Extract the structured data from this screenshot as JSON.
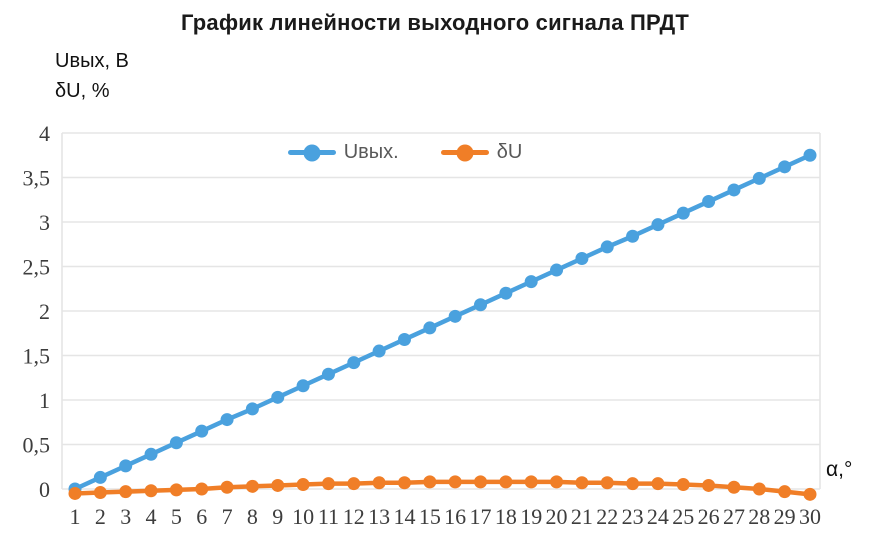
{
  "title_block": {
    "title": "График линейности выходного сигнала ПРДТ"
  },
  "colors": {
    "series_blue": "#4AA1DE",
    "series_orange": "#F07E27",
    "gridline": "#E5E5E5",
    "tick_text": "#3d3d3d",
    "legend_text": "#595959",
    "title_text": "#1a1a1a"
  },
  "chart_data": {
    "type": "line",
    "title": "График линейности выходного сигнала ПРДТ",
    "xlabel": "α,°",
    "ylabel_lines": [
      "Uвых, В",
      "δU, %"
    ],
    "x": [
      1,
      2,
      3,
      4,
      5,
      6,
      7,
      8,
      9,
      10,
      11,
      12,
      13,
      14,
      15,
      16,
      17,
      18,
      19,
      20,
      21,
      22,
      23,
      24,
      25,
      26,
      27,
      28,
      29,
      30
    ],
    "series": [
      {
        "name": "Uвых.",
        "color": "#4AA1DE",
        "values": [
          0.0,
          0.13,
          0.26,
          0.39,
          0.52,
          0.65,
          0.78,
          0.9,
          1.03,
          1.16,
          1.29,
          1.42,
          1.55,
          1.68,
          1.81,
          1.94,
          2.07,
          2.2,
          2.33,
          2.46,
          2.59,
          2.72,
          2.84,
          2.97,
          3.1,
          3.23,
          3.36,
          3.49,
          3.62,
          3.75
        ]
      },
      {
        "name": "δU",
        "color": "#F07E27",
        "values": [
          -0.05,
          -0.04,
          -0.03,
          -0.02,
          -0.01,
          0.0,
          0.02,
          0.03,
          0.04,
          0.05,
          0.06,
          0.06,
          0.07,
          0.07,
          0.08,
          0.08,
          0.08,
          0.08,
          0.08,
          0.08,
          0.07,
          0.07,
          0.06,
          0.06,
          0.05,
          0.04,
          0.02,
          0.0,
          -0.03,
          -0.06
        ]
      }
    ],
    "ylim": [
      0,
      4
    ],
    "ytick_step": 0.5,
    "ytick_labels": [
      "0",
      "0,5",
      "1",
      "1,5",
      "2",
      "2,5",
      "3",
      "3,5",
      "4"
    ],
    "decimal_separator": ",",
    "grid": "horizontal",
    "legend_position": "top-center",
    "marker": "circle"
  }
}
